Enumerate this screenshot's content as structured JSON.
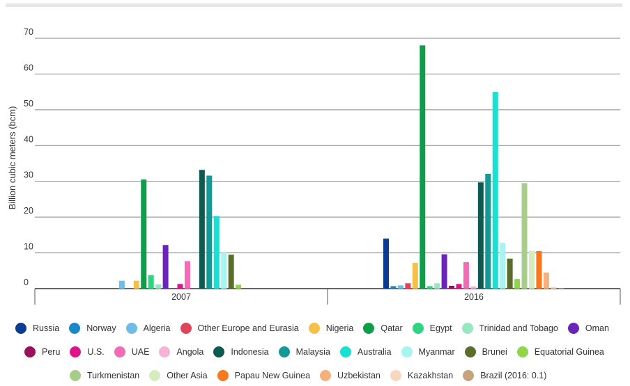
{
  "chart_data": {
    "type": "bar",
    "title": "",
    "xlabel": "",
    "ylabel": "Billion cubic meters (bcm)",
    "ylim": [
      0,
      70
    ],
    "yticks": [
      0,
      10,
      20,
      30,
      40,
      50,
      60,
      70
    ],
    "grid": true,
    "legend_position": "bottom",
    "categories": [
      "2007",
      "2016"
    ],
    "series": [
      {
        "name": "Russia",
        "color": "#0b3c91",
        "values": [
          0,
          14
        ]
      },
      {
        "name": "Norway",
        "color": "#1a87c9",
        "values": [
          0,
          0.7
        ]
      },
      {
        "name": "Algeria",
        "color": "#6fbde6",
        "values": [
          2.2,
          0.9
        ]
      },
      {
        "name": "Other Europe and Eurasia",
        "color": "#e0445b",
        "values": [
          0,
          1.5
        ]
      },
      {
        "name": "Nigeria",
        "color": "#f4c04a",
        "values": [
          2.2,
          7.2
        ]
      },
      {
        "name": "Qatar",
        "color": "#0f9d4a",
        "values": [
          30.5,
          68
        ]
      },
      {
        "name": "Egypt",
        "color": "#2ed480",
        "values": [
          3.8,
          0.7
        ]
      },
      {
        "name": "Trinidad and Tobago",
        "color": "#96e8bf",
        "values": [
          1.2,
          1.5
        ]
      },
      {
        "name": "Oman",
        "color": "#6a24b8",
        "values": [
          12.2,
          9.6
        ]
      },
      {
        "name": "Peru",
        "color": "#9b0f5c",
        "values": [
          0,
          0.8
        ]
      },
      {
        "name": "U.S.",
        "color": "#e0148a",
        "values": [
          1.3,
          1.3
        ]
      },
      {
        "name": "UAE",
        "color": "#f26bb7",
        "values": [
          7.7,
          7.4
        ]
      },
      {
        "name": "Angola",
        "color": "#f7b3d6",
        "values": [
          0,
          0.6
        ]
      },
      {
        "name": "Indonesia",
        "color": "#0d5a52",
        "values": [
          33.2,
          29.7
        ]
      },
      {
        "name": "Malaysia",
        "color": "#119a96",
        "values": [
          31.6,
          32.1
        ]
      },
      {
        "name": "Australia",
        "color": "#18e0d3",
        "values": [
          20.3,
          55
        ]
      },
      {
        "name": "Myanmar",
        "color": "#a6f5f0",
        "values": [
          10,
          12.8
        ]
      },
      {
        "name": "Brunei",
        "color": "#5a6e2c",
        "values": [
          9.5,
          8.4
        ]
      },
      {
        "name": "Equatorial Guinea",
        "color": "#8fd64a",
        "values": [
          1.1,
          2.7
        ]
      },
      {
        "name": "Turkmenistan",
        "color": "#a8cc8a",
        "values": [
          0,
          29.5
        ]
      },
      {
        "name": "Other Asia",
        "color": "#d6ecc0",
        "values": [
          0,
          10.6
        ]
      },
      {
        "name": "Papau New Guinea",
        "color": "#f7781d",
        "values": [
          0,
          10.5
        ]
      },
      {
        "name": "Uzbekistan",
        "color": "#f7b07c",
        "values": [
          0,
          4.5
        ]
      },
      {
        "name": "Kazakhstan",
        "color": "#f8d7bf",
        "values": [
          0,
          0.4
        ]
      },
      {
        "name": "Brazil (2016: 0.1)",
        "color": "#c4a47c",
        "values": [
          0,
          0.1
        ]
      }
    ]
  }
}
